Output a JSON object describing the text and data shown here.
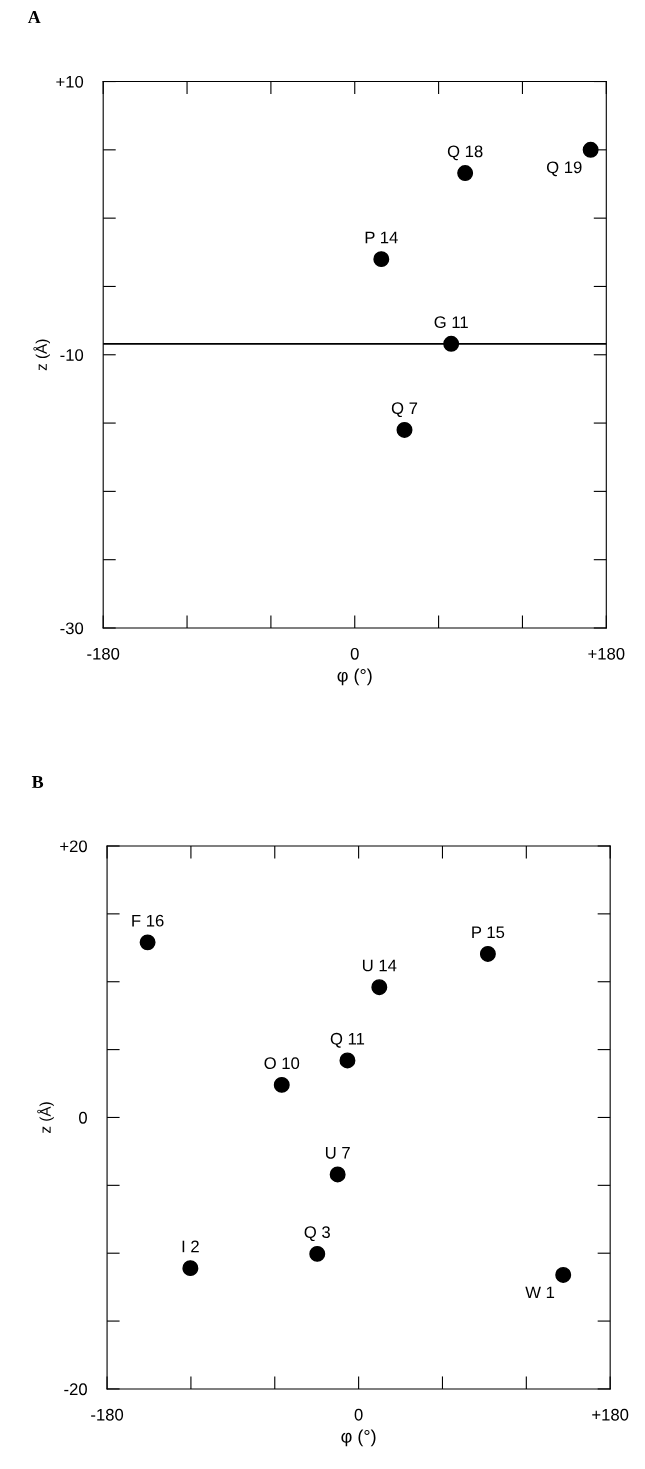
{
  "chart_data": [
    {
      "type": "scatter",
      "title": "A",
      "xlabel": "φ (°)",
      "ylabel": "z (Å)",
      "marker": "circle",
      "grid": false,
      "x": [
        168.8,
        79,
        19,
        69,
        35.6
      ],
      "series": [
        {
          "color": "#000000",
          "values": [
            5.0,
            3.3,
            -3.0,
            -9.2,
            -15.5
          ]
        }
      ],
      "annotations": [
        {
          "text": "Q 19",
          "x": 168.8,
          "y": 5.0
        },
        {
          "text": "Q 18",
          "x": 79,
          "y": 3.3
        },
        {
          "text": "P 14",
          "x": 19,
          "y": -3.0
        },
        {
          "text": "G 11",
          "x": 69,
          "y": -9.2
        },
        {
          "text": "Q 7",
          "x": 35.6,
          "y": -15.5
        }
      ],
      "ref_lines": [
        {
          "axis": "y",
          "value": -9.2,
          "color": "#000000",
          "line_style": "solid"
        }
      ],
      "xlim": [
        -180,
        180
      ],
      "ylim": [
        -30,
        10
      ],
      "xticks": [
        {
          "value": -180,
          "label": "-180"
        },
        {
          "value": -120,
          "label": null
        },
        {
          "value": -60,
          "label": null
        },
        {
          "value": 0,
          "label": "0"
        },
        {
          "value": 60,
          "label": null
        },
        {
          "value": 120,
          "label": null
        },
        {
          "value": 180,
          "label": "+180"
        }
      ],
      "yticks": [
        {
          "value": -30,
          "label": "-30"
        },
        {
          "value": -25,
          "label": null
        },
        {
          "value": -20,
          "label": null
        },
        {
          "value": -15,
          "label": null
        },
        {
          "value": -10,
          "label": "-10"
        },
        {
          "value": -5,
          "label": null
        },
        {
          "value": 0,
          "label": null
        },
        {
          "value": 5,
          "label": null
        },
        {
          "value": 10,
          "label": "+10"
        }
      ]
    },
    {
      "type": "scatter",
      "title": "B",
      "xlabel": "φ (°)",
      "ylabel": "z (Å)",
      "marker": "circle",
      "grid": false,
      "x": [
        -151,
        92.5,
        14.8,
        -8,
        -55,
        -15,
        -29.6,
        -120.4,
        146.4
      ],
      "series": [
        {
          "color": "#000000",
          "values": [
            12.9,
            12.05,
            9.6,
            4.2,
            2.4,
            -4.2,
            -10.05,
            -11.1,
            -11.6
          ]
        }
      ],
      "annotations": [
        {
          "text": "F 16",
          "x": -151,
          "y": 12.9
        },
        {
          "text": "P 15",
          "x": 92.5,
          "y": 12.05
        },
        {
          "text": "U 14",
          "x": 14.8,
          "y": 9.6
        },
        {
          "text": "Q 11",
          "x": -8,
          "y": 4.2
        },
        {
          "text": "O 10",
          "x": -55,
          "y": 2.4
        },
        {
          "text": "U 7",
          "x": -15,
          "y": -4.2
        },
        {
          "text": "Q 3",
          "x": -29.6,
          "y": -10.05
        },
        {
          "text": "I 2",
          "x": -120.4,
          "y": -11.1
        },
        {
          "text": "W 1",
          "x": 146.4,
          "y": -11.6
        }
      ],
      "xlim": [
        -180,
        180
      ],
      "ylim": [
        -20,
        20
      ],
      "xticks": [
        {
          "value": -180,
          "label": "-180"
        },
        {
          "value": -120,
          "label": null
        },
        {
          "value": -60,
          "label": null
        },
        {
          "value": 0,
          "label": "0"
        },
        {
          "value": 60,
          "label": null
        },
        {
          "value": 120,
          "label": null
        },
        {
          "value": 180,
          "label": "+180"
        }
      ],
      "yticks": [
        {
          "value": -20,
          "label": "-20"
        },
        {
          "value": -15,
          "label": null
        },
        {
          "value": -10,
          "label": null
        },
        {
          "value": -5,
          "label": null
        },
        {
          "value": 0,
          "label": "0"
        },
        {
          "value": 5,
          "label": null
        },
        {
          "value": 10,
          "label": null
        },
        {
          "value": 15,
          "label": null
        },
        {
          "value": 20,
          "label": "+20"
        }
      ]
    }
  ]
}
